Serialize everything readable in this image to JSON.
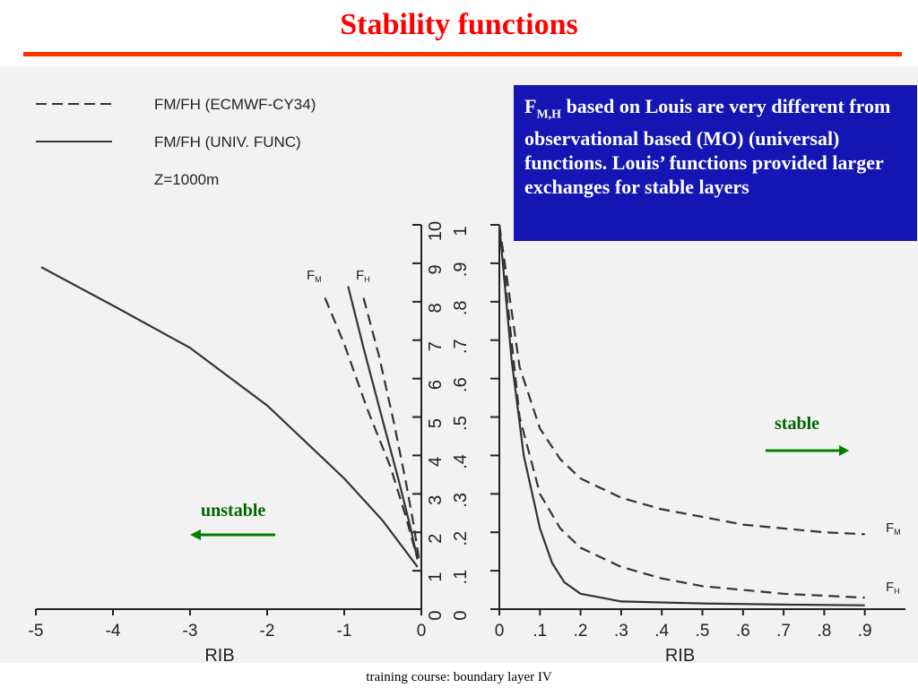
{
  "title": "Stability functions",
  "callout": {
    "prefix": "F",
    "sub": "M,H",
    "rest": " based on Louis are very different from observational based (MO) (universal) functions. Louis’ functions provided larger exchanges for stable layers"
  },
  "labels": {
    "stable": "stable",
    "unstable": "unstable"
  },
  "footer": "training course: boundary layer IV",
  "colors": {
    "title": "#ff0000",
    "rule": "#ff3300",
    "callout_bg": "#1515b4",
    "arrow": "#008000"
  },
  "chart_data": [
    {
      "type": "line",
      "panel": "unstable",
      "xlabel": "RIB",
      "xlim": [
        -5,
        0
      ],
      "xticks": [
        "-5",
        "-4",
        "-3",
        "-2",
        "-1",
        "0"
      ],
      "ylim": [
        0,
        10
      ],
      "yticks": [
        "0",
        "1",
        "2",
        "3",
        "4",
        "5",
        "6",
        "7",
        "8",
        "9",
        "10"
      ],
      "legend": [
        {
          "style": "dashed",
          "label": "FM/FH (ECMWF-CY34)"
        },
        {
          "style": "solid",
          "label": "FM/FH (UNIV. FUNC)"
        },
        {
          "style": "none",
          "label": "Z=1000m"
        }
      ],
      "series": [
        {
          "name": "FM/FH (UNIV. FUNC)",
          "style": "solid",
          "x": [
            -4.93,
            -4.0,
            -3.0,
            -2.0,
            -1.0,
            -0.5,
            -0.2,
            -0.05
          ],
          "y": [
            8.9,
            7.9,
            6.8,
            5.3,
            3.4,
            2.3,
            1.5,
            1.1
          ]
        },
        {
          "name": "F_M",
          "style": "dashed",
          "x": [
            -1.25,
            -1.0,
            -0.7,
            -0.4,
            -0.2,
            -0.05
          ],
          "y": [
            8.1,
            6.9,
            5.2,
            3.7,
            2.4,
            1.3
          ]
        },
        {
          "name": "F_H",
          "style": "solid",
          "x": [
            -0.95,
            -0.75,
            -0.5,
            -0.3,
            -0.15,
            -0.05
          ],
          "y": [
            8.4,
            6.8,
            4.9,
            3.4,
            2.2,
            1.3
          ]
        },
        {
          "name": "F_H",
          "style": "dashed",
          "x": [
            -0.75,
            -0.55,
            -0.35,
            -0.2,
            -0.1,
            -0.03
          ],
          "y": [
            8.1,
            6.6,
            4.8,
            3.3,
            2.2,
            1.3
          ]
        }
      ],
      "curve_labels": [
        "F_M",
        "F_H"
      ]
    },
    {
      "type": "line",
      "panel": "stable",
      "xlabel": "RIB",
      "xlim": [
        0,
        1
      ],
      "xticks": [
        "0",
        ".1",
        ".2",
        ".3",
        ".4",
        ".5",
        ".6",
        ".7",
        ".8",
        ".9"
      ],
      "ylim": [
        0,
        1
      ],
      "yticks": [
        "0",
        ".1",
        ".2",
        ".3",
        ".4",
        ".5",
        ".6",
        ".7",
        ".8",
        ".9",
        "1"
      ],
      "series": [
        {
          "name": "F_M",
          "style": "dashed",
          "x": [
            0,
            0.05,
            0.1,
            0.15,
            0.2,
            0.3,
            0.4,
            0.5,
            0.6,
            0.7,
            0.8,
            0.9
          ],
          "y": [
            1.0,
            0.63,
            0.47,
            0.39,
            0.34,
            0.29,
            0.26,
            0.24,
            0.22,
            0.21,
            0.2,
            0.195
          ]
        },
        {
          "name": "F_H",
          "style": "dashed",
          "x": [
            0,
            0.05,
            0.1,
            0.15,
            0.2,
            0.3,
            0.4,
            0.5,
            0.6,
            0.7,
            0.8,
            0.9
          ],
          "y": [
            1.0,
            0.5,
            0.3,
            0.21,
            0.16,
            0.11,
            0.08,
            0.06,
            0.05,
            0.04,
            0.035,
            0.03
          ]
        },
        {
          "name": "universal",
          "style": "solid",
          "x": [
            0,
            0.03,
            0.06,
            0.1,
            0.13,
            0.16,
            0.2,
            0.25,
            0.3,
            0.5,
            0.7,
            0.9
          ],
          "y": [
            1.0,
            0.65,
            0.4,
            0.21,
            0.12,
            0.07,
            0.04,
            0.03,
            0.02,
            0.015,
            0.012,
            0.01
          ]
        }
      ],
      "curve_labels": [
        "F_M",
        "F_H"
      ]
    }
  ]
}
